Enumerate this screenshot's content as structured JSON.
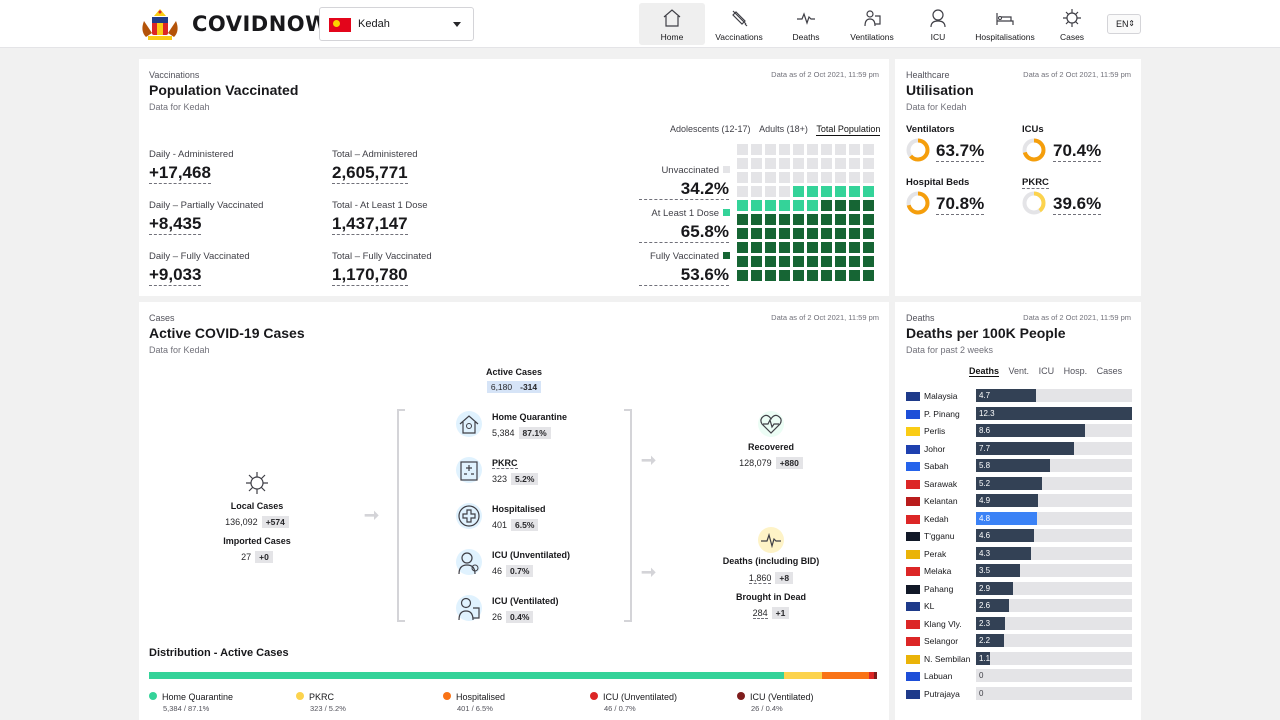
{
  "header": {
    "brand": "COVIDNOW",
    "state": "Kedah",
    "nav": [
      {
        "label": "Home",
        "icon": "home-icon"
      },
      {
        "label": "Vaccinations",
        "icon": "syringe-icon"
      },
      {
        "label": "Deaths",
        "icon": "pulse-icon"
      },
      {
        "label": "Ventilations",
        "icon": "ventilator-icon"
      },
      {
        "label": "ICU",
        "icon": "icu-icon"
      },
      {
        "label": "Hospitalisations",
        "icon": "hospital-bed-icon"
      },
      {
        "label": "Cases",
        "icon": "virus-icon"
      }
    ],
    "lang": "EN"
  },
  "vaccinations": {
    "eyebrow": "Vaccinations",
    "title": "Population Vaccinated",
    "sub": "Data for Kedah",
    "asof": "Data as of 2 Oct 2021, 11:59 pm",
    "tabs": [
      "Adolescents (12-17)",
      "Adults (18+)",
      "Total Population"
    ],
    "stats": [
      {
        "label": "Daily - Administered",
        "value": "+17,468"
      },
      {
        "label": "Total – Administered",
        "value": "2,605,771"
      },
      {
        "label": "Daily – Partially Vaccinated",
        "value": "+8,435"
      },
      {
        "label": "Total - At Least 1 Dose",
        "value": "1,437,147"
      },
      {
        "label": "Daily – Fully Vaccinated",
        "value": "+9,033"
      },
      {
        "label": "Total – Fully Vaccinated",
        "value": "1,170,780"
      }
    ],
    "waffle": [
      {
        "label": "Unvaccinated",
        "value": "34.2%",
        "color": "#e4e4e7"
      },
      {
        "label": "At Least 1 Dose",
        "value": "65.8%",
        "color": "#34d399"
      },
      {
        "label": "Fully Vaccinated",
        "value": "53.6%",
        "color": "#166534"
      }
    ]
  },
  "utilisation": {
    "eyebrow": "Healthcare",
    "title": "Utilisation",
    "sub": "Data for Kedah",
    "asof": "Data as of 2 Oct 2021, 11:59 pm",
    "items": [
      {
        "label": "Ventilators",
        "value": "63.7%",
        "pct": 63.7
      },
      {
        "label": "ICUs",
        "value": "70.4%",
        "pct": 70.4
      },
      {
        "label": "Hospital Beds",
        "value": "70.8%",
        "pct": 70.8
      },
      {
        "label": "PKRC",
        "value": "39.6%",
        "pct": 39.6
      }
    ]
  },
  "cases": {
    "eyebrow": "Cases",
    "title": "Active COVID-19 Cases",
    "sub": "Data for Kedah",
    "asof": "Data as of 2 Oct 2021, 11:59 pm",
    "active": {
      "label": "Active Cases",
      "value": "6,180",
      "delta": "-314"
    },
    "local": {
      "label": "Local Cases",
      "value": "136,092",
      "delta": "+574"
    },
    "imported": {
      "label": "Imported Cases",
      "value": "27",
      "delta": "+0"
    },
    "flows": [
      {
        "label": "Home Quarantine",
        "value": "5,384",
        "pct": "87.1%",
        "icon": "home-quarantine-icon"
      },
      {
        "label": "PKRC",
        "value": "323",
        "pct": "5.2%",
        "icon": "pkrc-building-icon"
      },
      {
        "label": "Hospitalised",
        "value": "401",
        "pct": "6.5%",
        "icon": "medical-cross-icon"
      },
      {
        "label": "ICU (Unventilated)",
        "value": "46",
        "pct": "0.7%",
        "icon": "icu-patient-icon"
      },
      {
        "label": "ICU (Ventilated)",
        "value": "26",
        "pct": "0.4%",
        "icon": "ventilated-patient-icon"
      }
    ],
    "recovered": {
      "label": "Recovered",
      "value": "128,079",
      "delta": "+880"
    },
    "deaths": {
      "label": "Deaths (including BID)",
      "value": "1,860",
      "delta": "+8"
    },
    "bid": {
      "label": "Brought in Dead",
      "value": "284",
      "delta": "+1"
    },
    "distribution": {
      "title": "Distribution - Active Cases",
      "segments": [
        {
          "label": "Home Quarantine",
          "sub": "5,384 / 87.1%",
          "pct": 87.1,
          "color": "#34d399"
        },
        {
          "label": "PKRC",
          "sub": "323 / 5.2%",
          "pct": 5.2,
          "color": "#fcd34d"
        },
        {
          "label": "Hospitalised",
          "sub": "401 / 6.5%",
          "pct": 6.5,
          "color": "#f97316"
        },
        {
          "label": "ICU (Unventilated)",
          "sub": "46 / 0.7%",
          "pct": 0.7,
          "color": "#dc2626"
        },
        {
          "label": "ICU (Ventilated)",
          "sub": "26 / 0.4%",
          "pct": 0.4,
          "color": "#7f1d1d"
        }
      ]
    }
  },
  "deaths_panel": {
    "eyebrow": "Deaths",
    "title": "Deaths per 100K People",
    "sub": "Data for past 2 weeks",
    "asof": "Data as of 2 Oct 2021, 11:59 pm",
    "tabs": [
      "Deaths",
      "Vent.",
      "ICU",
      "Hosp.",
      "Cases"
    ],
    "rows": [
      {
        "name": "Malaysia",
        "value": 4.7,
        "label": "4.7",
        "flag": "#1e3a8a"
      },
      {
        "name": "P. Pinang",
        "value": 12.3,
        "label": "12.3",
        "flag": "#1d4ed8"
      },
      {
        "name": "Perlis",
        "value": 8.6,
        "label": "8.6",
        "flag": "#facc15"
      },
      {
        "name": "Johor",
        "value": 7.7,
        "label": "7.7",
        "flag": "#1e40af"
      },
      {
        "name": "Sabah",
        "value": 5.8,
        "label": "5.8",
        "flag": "#2563eb"
      },
      {
        "name": "Sarawak",
        "value": 5.2,
        "label": "5.2",
        "flag": "#dc2626"
      },
      {
        "name": "Kelantan",
        "value": 4.9,
        "label": "4.9",
        "flag": "#b91c1c"
      },
      {
        "name": "Kedah",
        "value": 4.8,
        "label": "4.8",
        "flag": "#dc2626",
        "hl": true
      },
      {
        "name": "T'gganu",
        "value": 4.6,
        "label": "4.6",
        "flag": "#111827"
      },
      {
        "name": "Perak",
        "value": 4.3,
        "label": "4.3",
        "flag": "#eab308"
      },
      {
        "name": "Melaka",
        "value": 3.5,
        "label": "3.5",
        "flag": "#dc2626"
      },
      {
        "name": "Pahang",
        "value": 2.9,
        "label": "2.9",
        "flag": "#111827"
      },
      {
        "name": "KL",
        "value": 2.6,
        "label": "2.6",
        "flag": "#1e3a8a"
      },
      {
        "name": "Klang Vly.",
        "value": 2.3,
        "label": "2.3",
        "flag": "#dc2626"
      },
      {
        "name": "Selangor",
        "value": 2.2,
        "label": "2.2",
        "flag": "#dc2626"
      },
      {
        "name": "N. Sembilan",
        "value": 1.1,
        "label": "1.1",
        "flag": "#eab308"
      },
      {
        "name": "Labuan",
        "value": 0,
        "label": "0",
        "flag": "#1d4ed8"
      },
      {
        "name": "Putrajaya",
        "value": 0,
        "label": "0",
        "flag": "#1e3a8a"
      }
    ],
    "max": 12.3
  }
}
